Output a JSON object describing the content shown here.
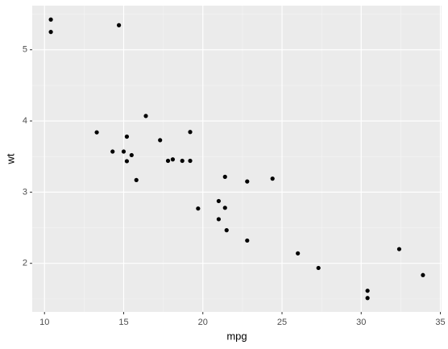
{
  "chart_data": {
    "type": "scatter",
    "x_label": "mpg",
    "y_label": "wt",
    "x": [
      21.0,
      21.0,
      22.8,
      21.4,
      18.7,
      18.1,
      14.3,
      24.4,
      22.8,
      19.2,
      17.8,
      16.4,
      17.3,
      15.2,
      10.4,
      10.4,
      14.7,
      32.4,
      30.4,
      33.9,
      21.5,
      15.5,
      15.2,
      13.3,
      19.2,
      27.3,
      26.0,
      30.4,
      15.8,
      19.7,
      15.0,
      21.4
    ],
    "y": [
      2.62,
      2.875,
      2.32,
      3.215,
      3.44,
      3.46,
      3.57,
      3.19,
      3.15,
      3.44,
      3.44,
      4.07,
      3.73,
      3.78,
      5.25,
      5.424,
      5.345,
      2.2,
      1.615,
      1.835,
      2.465,
      3.52,
      3.435,
      3.84,
      3.845,
      1.935,
      2.14,
      1.513,
      3.17,
      2.77,
      3.57,
      2.78
    ],
    "color": "#000000",
    "xlim": [
      9.225,
      35.075
    ],
    "ylim": [
      1.31745,
      5.61955
    ],
    "xticks": [
      10,
      15,
      20,
      25,
      30,
      35
    ],
    "yticks": [
      2,
      3,
      4,
      5
    ],
    "grid": true
  }
}
